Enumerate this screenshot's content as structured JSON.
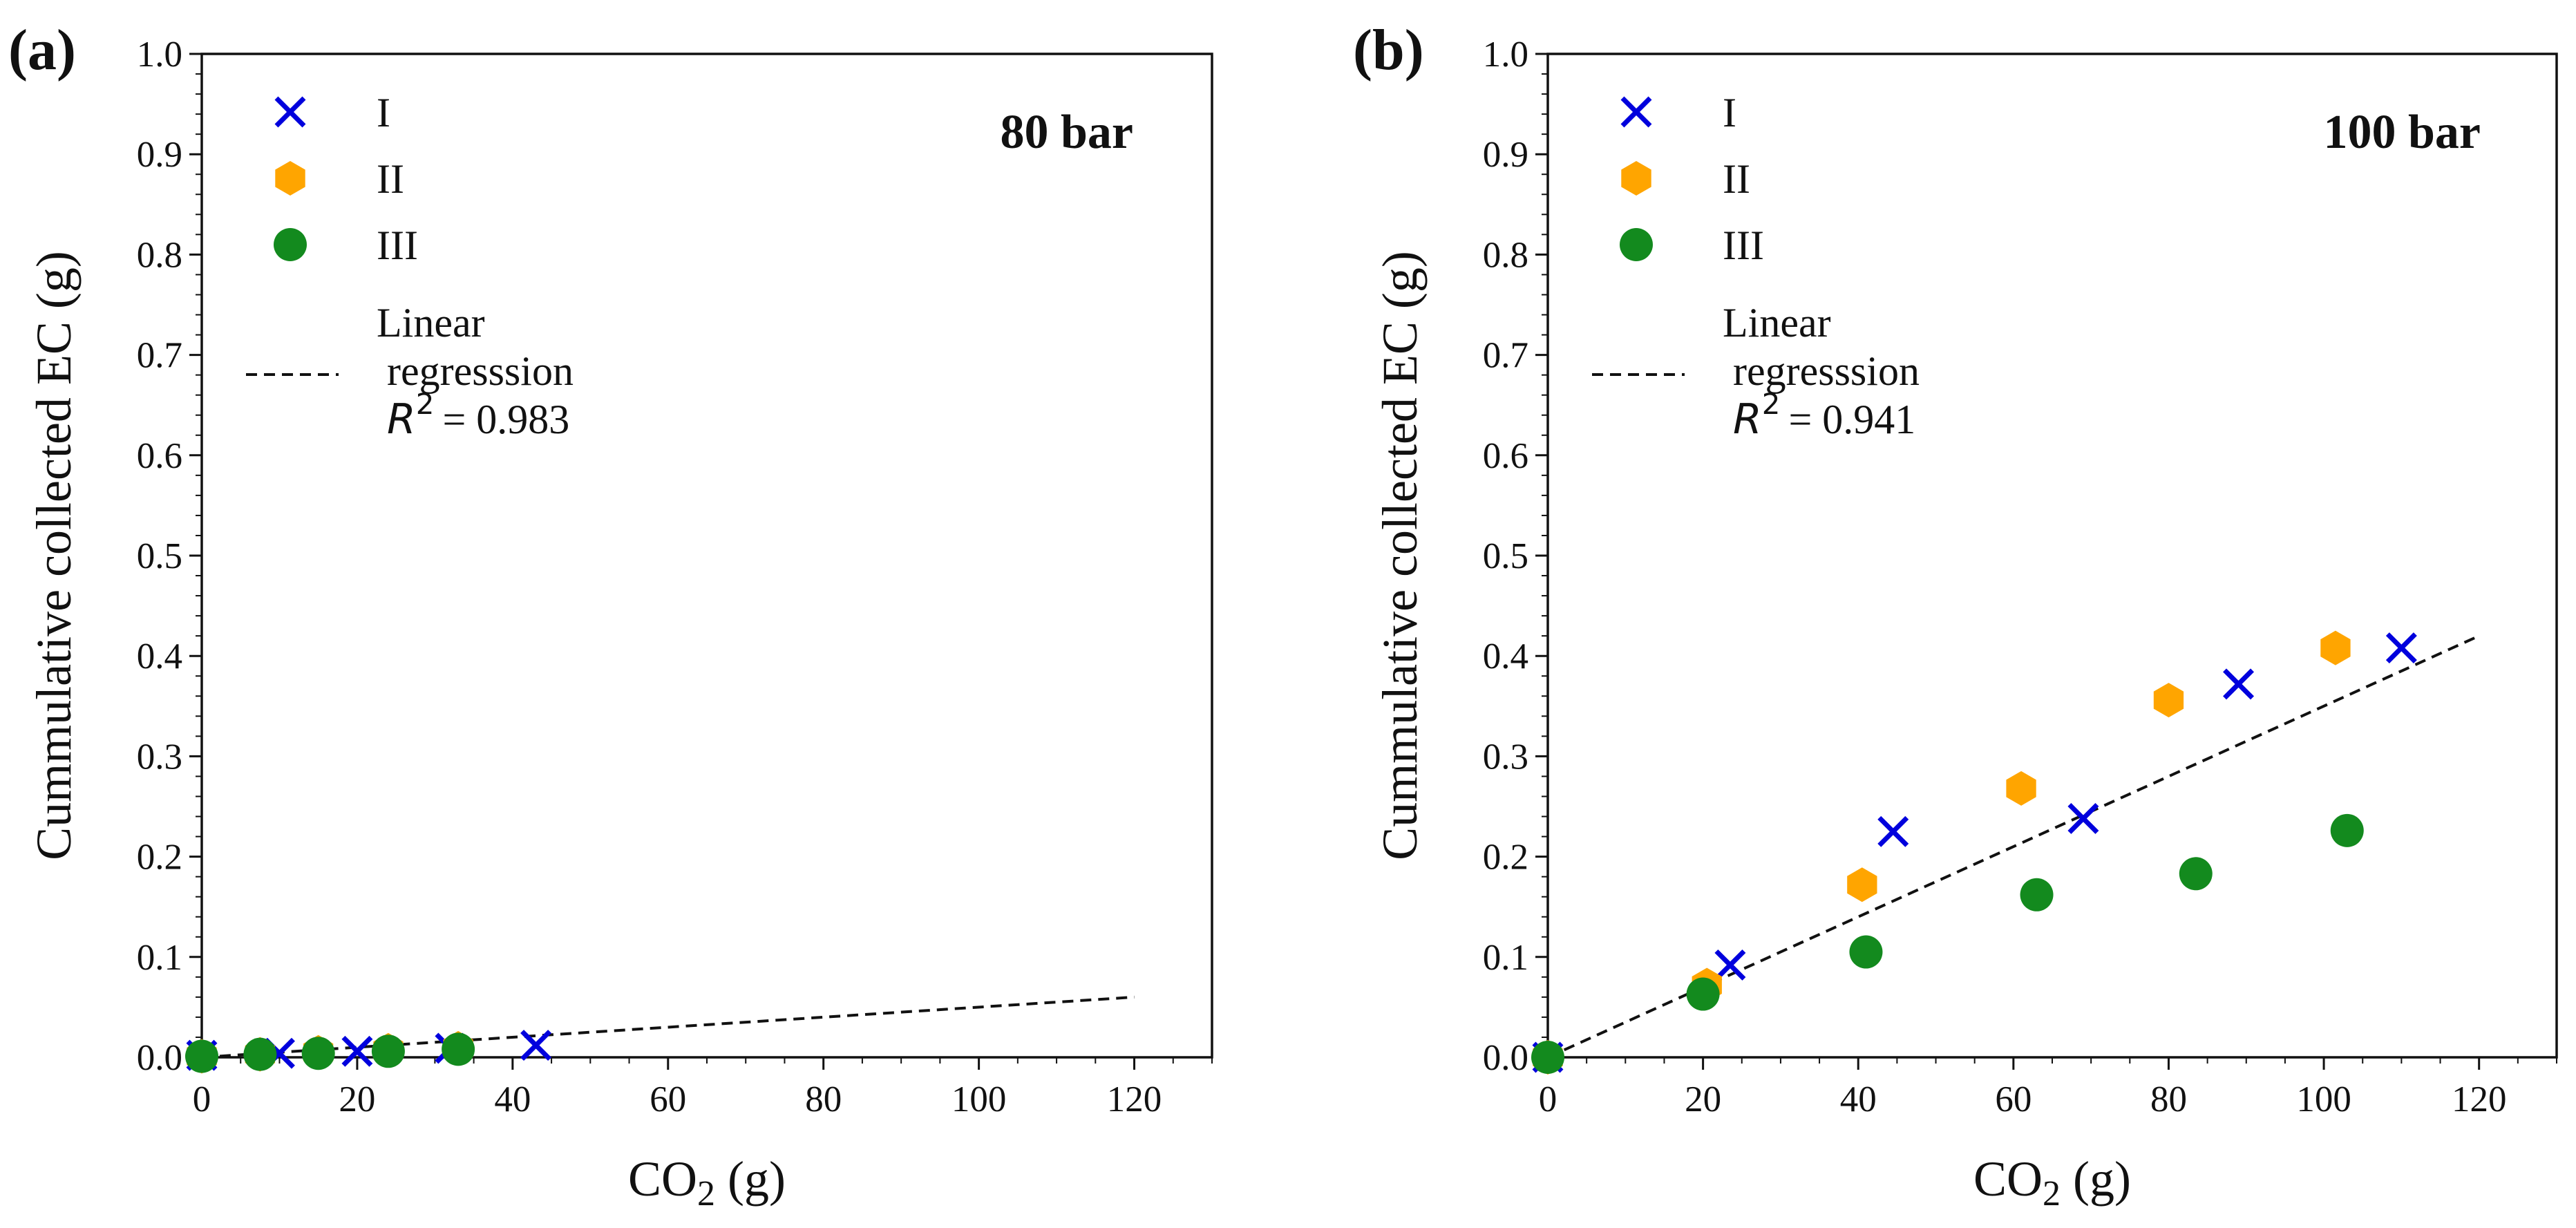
{
  "chart_data": [
    {
      "type": "scatter",
      "panel_label": "(a)",
      "annotation": "80 bar",
      "xlabel": "CO₂ (g)",
      "ylabel": "Cummulative collected EC (g)",
      "xlim": [
        0,
        130
      ],
      "ylim": [
        0,
        1.0
      ],
      "xticks": [
        "0",
        "20",
        "40",
        "60",
        "80",
        "100",
        "120"
      ],
      "yticks": [
        "0.0",
        "0.1",
        "0.2",
        "0.3",
        "0.4",
        "0.5",
        "0.6",
        "0.7",
        "0.8",
        "0.9",
        "1.0"
      ],
      "series": [
        {
          "name": "I",
          "marker": "x",
          "color": "#0000dd",
          "points": [
            [
              0,
              0.002
            ],
            [
              10,
              0.004
            ],
            [
              20,
              0.006
            ],
            [
              32,
              0.009
            ],
            [
              43,
              0.012
            ]
          ]
        },
        {
          "name": "II",
          "marker": "hexagon",
          "color": "#ffa500",
          "points": [
            [
              0,
              0.001
            ],
            [
              7.5,
              0.003
            ],
            [
              15,
              0.005
            ],
            [
              24,
              0.007
            ],
            [
              33,
              0.009
            ]
          ]
        },
        {
          "name": "III",
          "marker": "circle",
          "color": "#138a1e",
          "points": [
            [
              0,
              0.001
            ],
            [
              7.5,
              0.003
            ],
            [
              15,
              0.004
            ],
            [
              24,
              0.006
            ],
            [
              33,
              0.008
            ]
          ]
        }
      ],
      "regression": {
        "label_line1": "Linear",
        "label_line2": "regresssion",
        "r2_symbol": "R",
        "r2_exp": "2",
        "r2_value": "= 0.983",
        "x": [
          0,
          120
        ],
        "y": [
          0,
          0.06
        ]
      }
    },
    {
      "type": "scatter",
      "panel_label": "(b)",
      "annotation": "100 bar",
      "xlabel": "CO₂ (g)",
      "ylabel": "Cummulative collected EC (g)",
      "xlim": [
        0,
        130
      ],
      "ylim": [
        0,
        1.0
      ],
      "xticks": [
        "0",
        "20",
        "40",
        "60",
        "80",
        "100",
        "120"
      ],
      "yticks": [
        "0.0",
        "0.1",
        "0.2",
        "0.3",
        "0.4",
        "0.5",
        "0.6",
        "0.7",
        "0.8",
        "0.9",
        "1.0"
      ],
      "series": [
        {
          "name": "I",
          "marker": "x",
          "color": "#0000dd",
          "points": [
            [
              0,
              0.0
            ],
            [
              23.5,
              0.092
            ],
            [
              44.5,
              0.225
            ],
            [
              69,
              0.238
            ],
            [
              89,
              0.372
            ],
            [
              110,
              0.408
            ]
          ]
        },
        {
          "name": "II",
          "marker": "hexagon",
          "color": "#ffa500",
          "points": [
            [
              0,
              0.0
            ],
            [
              20.5,
              0.072
            ],
            [
              40.5,
              0.172
            ],
            [
              61,
              0.268
            ],
            [
              80,
              0.356
            ],
            [
              101.5,
              0.408
            ]
          ]
        },
        {
          "name": "III",
          "marker": "circle",
          "color": "#138a1e",
          "points": [
            [
              0,
              0.0
            ],
            [
              20,
              0.063
            ],
            [
              41,
              0.105
            ],
            [
              63,
              0.162
            ],
            [
              83.5,
              0.183
            ],
            [
              103,
              0.226
            ]
          ]
        }
      ],
      "regression": {
        "label_line1": "Linear",
        "label_line2": "regresssion",
        "r2_symbol": "R",
        "r2_exp": "2",
        "r2_value": "= 0.941",
        "x": [
          0,
          120
        ],
        "y": [
          0,
          0.42
        ]
      }
    }
  ]
}
